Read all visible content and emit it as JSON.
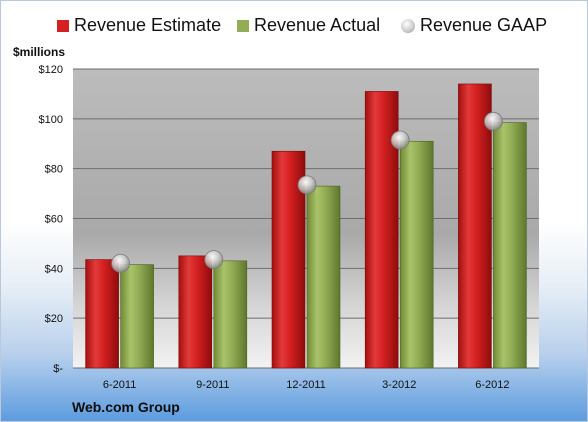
{
  "legend": {
    "estimate": "Revenue Estimate",
    "actual": "Revenue Actual",
    "gaap": "Revenue GAAP"
  },
  "colors": {
    "estimate": "#d42020",
    "actual": "#93ad56",
    "gaap": "#c4c4c4",
    "plot_bg_top": "#bdbdbd",
    "plot_bg_bottom": "#f5f5f5"
  },
  "company": "Web.com Group",
  "chart_data": {
    "type": "bar",
    "title": "",
    "ylabel": "$millions",
    "xlabel": "",
    "categories": [
      "6-2011",
      "9-2011",
      "12-2011",
      "3-2012",
      "6-2012"
    ],
    "ylim": [
      0,
      120
    ],
    "yticks": [
      0,
      20,
      40,
      60,
      80,
      100,
      120
    ],
    "ytick_labels": [
      "$-",
      "$20",
      "$40",
      "$60",
      "$80",
      "$100",
      "$120"
    ],
    "grid": true,
    "legend_position": "top",
    "series": [
      {
        "name": "Revenue Estimate",
        "kind": "bar",
        "values": [
          43.5,
          45,
          87,
          111,
          114
        ]
      },
      {
        "name": "Revenue Actual",
        "kind": "bar",
        "values": [
          41.5,
          43,
          73,
          91,
          98.5
        ]
      },
      {
        "name": "Revenue GAAP",
        "kind": "marker",
        "values": [
          42,
          43.5,
          73.5,
          91.5,
          99
        ]
      }
    ]
  }
}
